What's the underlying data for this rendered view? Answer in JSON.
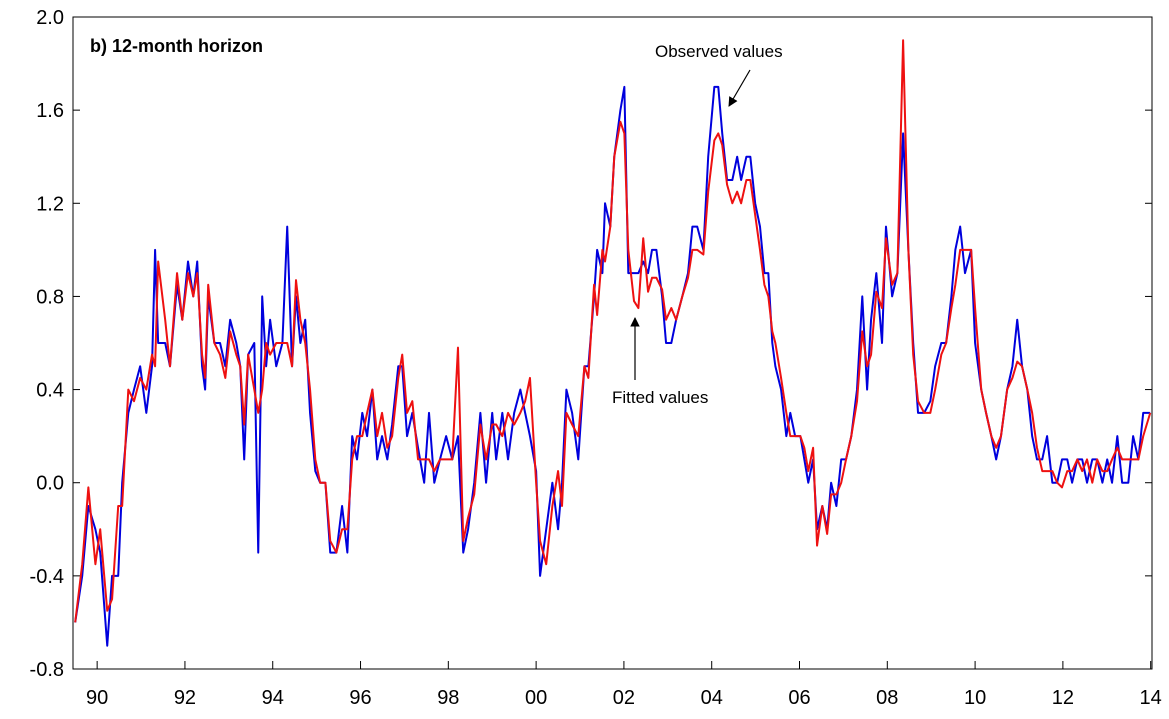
{
  "chart_data": {
    "type": "line",
    "title": "b) 12-month horizon",
    "annotations": [
      "Observed values",
      "Fitted values"
    ],
    "xlim": [
      1989.95,
      2014.53
    ],
    "ylim": [
      -0.8,
      2.0
    ],
    "xticks": [
      {
        "value": 1990.5,
        "label": "90"
      },
      {
        "value": 1992.5,
        "label": "92"
      },
      {
        "value": 1994.5,
        "label": "94"
      },
      {
        "value": 1996.5,
        "label": "96"
      },
      {
        "value": 1998.5,
        "label": "98"
      },
      {
        "value": 2000.5,
        "label": "00"
      },
      {
        "value": 2002.5,
        "label": "02"
      },
      {
        "value": 2004.5,
        "label": "04"
      },
      {
        "value": 2006.5,
        "label": "06"
      },
      {
        "value": 2008.5,
        "label": "08"
      },
      {
        "value": 2010.5,
        "label": "10"
      },
      {
        "value": 2012.5,
        "label": "12"
      },
      {
        "value": 2014.5,
        "label": "14"
      }
    ],
    "yticks": [
      -0.8,
      -0.4,
      {
        "value": 0,
        "label": "0.0"
      },
      0.4,
      0.8,
      1.2,
      1.6,
      {
        "value": 2,
        "label": "2.0"
      }
    ],
    "x": [
      1990.0,
      1990.16,
      1990.3,
      1990.46,
      1990.57,
      1990.73,
      1990.84,
      1990.98,
      1991.07,
      1991.21,
      1991.34,
      1991.48,
      1991.62,
      1991.75,
      1991.82,
      1991.89,
      1992.05,
      1992.16,
      1992.32,
      1992.44,
      1992.57,
      1992.69,
      1992.78,
      1992.89,
      1992.96,
      1993.03,
      1993.17,
      1993.3,
      1993.42,
      1993.53,
      1993.67,
      1993.76,
      1993.85,
      1993.94,
      1994.08,
      1994.17,
      1994.26,
      1994.35,
      1994.44,
      1994.58,
      1994.72,
      1994.83,
      1994.94,
      1995.03,
      1995.13,
      1995.24,
      1995.35,
      1995.47,
      1995.58,
      1995.7,
      1995.81,
      1995.95,
      1996.08,
      1996.2,
      1996.31,
      1996.42,
      1996.54,
      1996.65,
      1996.77,
      1996.88,
      1996.99,
      1997.11,
      1997.22,
      1997.36,
      1997.45,
      1997.56,
      1997.68,
      1997.81,
      1997.95,
      1998.06,
      1998.18,
      1998.31,
      1998.45,
      1998.59,
      1998.72,
      1998.84,
      1998.95,
      1999.09,
      1999.23,
      1999.36,
      1999.5,
      1999.59,
      1999.73,
      1999.86,
      2000.0,
      2000.14,
      2000.25,
      2000.36,
      2000.5,
      2000.59,
      2000.73,
      2000.87,
      2001.0,
      2001.09,
      2001.19,
      2001.32,
      2001.46,
      2001.6,
      2001.69,
      2001.82,
      2001.89,
      2002.01,
      2002.07,
      2002.19,
      2002.28,
      2002.42,
      2002.51,
      2002.6,
      2002.73,
      2002.83,
      2002.94,
      2003.05,
      2003.14,
      2003.24,
      2003.37,
      2003.46,
      2003.58,
      2003.69,
      2003.83,
      2003.96,
      2004.06,
      2004.17,
      2004.31,
      2004.42,
      2004.56,
      2004.65,
      2004.74,
      2004.85,
      2004.97,
      2005.08,
      2005.17,
      2005.29,
      2005.38,
      2005.49,
      2005.6,
      2005.7,
      2005.79,
      2005.88,
      2005.95,
      2006.08,
      2006.2,
      2006.29,
      2006.4,
      2006.52,
      2006.61,
      2006.7,
      2006.81,
      2006.9,
      2007.02,
      2007.13,
      2007.22,
      2007.34,
      2007.45,
      2007.56,
      2007.68,
      2007.81,
      2007.93,
      2008.04,
      2008.13,
      2008.25,
      2008.38,
      2008.47,
      2008.61,
      2008.73,
      2008.86,
      2008.98,
      2009.09,
      2009.2,
      2009.34,
      2009.48,
      2009.59,
      2009.73,
      2009.84,
      2009.96,
      2010.05,
      2010.16,
      2010.27,
      2010.41,
      2010.5,
      2010.64,
      2010.75,
      2010.87,
      2010.98,
      2011.09,
      2011.23,
      2011.35,
      2011.46,
      2011.57,
      2011.69,
      2011.8,
      2011.91,
      2012.03,
      2012.14,
      2012.26,
      2012.37,
      2012.48,
      2012.6,
      2012.71,
      2012.83,
      2012.94,
      2013.05,
      2013.17,
      2013.28,
      2013.4,
      2013.51,
      2013.62,
      2013.74,
      2013.85,
      2013.99,
      2014.1,
      2014.22,
      2014.33,
      2014.49
    ],
    "series": [
      {
        "name": "Observed values",
        "color": "#0000dd",
        "values": [
          -0.6,
          -0.4,
          -0.1,
          -0.2,
          -0.3,
          -0.7,
          -0.4,
          -0.4,
          0.0,
          0.3,
          0.4,
          0.5,
          0.3,
          0.5,
          1.0,
          0.6,
          0.6,
          0.5,
          0.85,
          0.7,
          0.95,
          0.8,
          0.95,
          0.5,
          0.4,
          0.8,
          0.6,
          0.6,
          0.5,
          0.7,
          0.6,
          0.5,
          0.1,
          0.55,
          0.6,
          -0.3,
          0.8,
          0.5,
          0.7,
          0.5,
          0.6,
          1.1,
          0.5,
          0.8,
          0.6,
          0.7,
          0.3,
          0.05,
          0.0,
          0.0,
          -0.3,
          -0.3,
          -0.1,
          -0.3,
          0.2,
          0.1,
          0.3,
          0.2,
          0.4,
          0.1,
          0.2,
          0.1,
          0.25,
          0.5,
          0.5,
          0.2,
          0.3,
          0.15,
          0.0,
          0.3,
          0.0,
          0.1,
          0.2,
          0.1,
          0.2,
          -0.3,
          -0.2,
          0.0,
          0.3,
          0.0,
          0.3,
          0.1,
          0.3,
          0.1,
          0.3,
          0.4,
          0.3,
          0.2,
          0.05,
          -0.4,
          -0.2,
          0.0,
          -0.2,
          0.0,
          0.4,
          0.3,
          0.1,
          0.5,
          0.5,
          0.8,
          1.0,
          0.9,
          1.2,
          1.1,
          1.4,
          1.6,
          1.7,
          0.9,
          0.9,
          0.9,
          0.95,
          0.9,
          1.0,
          1.0,
          0.8,
          0.6,
          0.6,
          0.7,
          0.8,
          0.9,
          1.1,
          1.1,
          1.0,
          1.4,
          1.7,
          1.7,
          1.5,
          1.3,
          1.3,
          1.4,
          1.3,
          1.4,
          1.4,
          1.2,
          1.1,
          0.9,
          0.9,
          0.6,
          0.5,
          0.4,
          0.2,
          0.3,
          0.2,
          0.2,
          0.1,
          0.0,
          0.1,
          -0.2,
          -0.1,
          -0.2,
          0.0,
          -0.1,
          0.1,
          0.1,
          0.2,
          0.4,
          0.8,
          0.4,
          0.7,
          0.9,
          0.6,
          1.1,
          0.8,
          0.9,
          1.5,
          1.0,
          0.6,
          0.3,
          0.3,
          0.35,
          0.5,
          0.6,
          0.6,
          0.8,
          1.0,
          1.1,
          0.9,
          1.0,
          0.6,
          0.4,
          0.3,
          0.2,
          0.1,
          0.2,
          0.4,
          0.5,
          0.7,
          0.5,
          0.4,
          0.2,
          0.1,
          0.1,
          0.2,
          0.0,
          0.0,
          0.1,
          0.1,
          0.0,
          0.1,
          0.1,
          0.0,
          0.1,
          0.1,
          0.0,
          0.1,
          0.0,
          0.2,
          0.0,
          0.0,
          0.2,
          0.1,
          0.3,
          0.3
        ]
      },
      {
        "name": "Fitted values",
        "color": "#ee1111",
        "values": [
          -0.6,
          -0.35,
          -0.02,
          -0.35,
          -0.2,
          -0.55,
          -0.5,
          -0.1,
          -0.1,
          0.4,
          0.35,
          0.45,
          0.4,
          0.55,
          0.5,
          0.95,
          0.7,
          0.5,
          0.9,
          0.7,
          0.9,
          0.8,
          0.9,
          0.55,
          0.45,
          0.85,
          0.6,
          0.55,
          0.45,
          0.65,
          0.55,
          0.5,
          0.25,
          0.55,
          0.4,
          0.3,
          0.4,
          0.6,
          0.55,
          0.6,
          0.6,
          0.6,
          0.5,
          0.87,
          0.7,
          0.6,
          0.4,
          0.1,
          0.0,
          0.0,
          -0.25,
          -0.3,
          -0.2,
          -0.2,
          0.1,
          0.2,
          0.2,
          0.3,
          0.4,
          0.2,
          0.3,
          0.15,
          0.2,
          0.45,
          0.55,
          0.3,
          0.35,
          0.1,
          0.1,
          0.1,
          0.05,
          0.1,
          0.1,
          0.1,
          0.58,
          -0.25,
          -0.15,
          -0.05,
          0.25,
          0.1,
          0.25,
          0.25,
          0.2,
          0.3,
          0.25,
          0.3,
          0.35,
          0.45,
          0.0,
          -0.25,
          -0.35,
          -0.1,
          0.05,
          -0.1,
          0.3,
          0.25,
          0.2,
          0.5,
          0.45,
          0.85,
          0.72,
          1.0,
          0.95,
          1.1,
          1.4,
          1.55,
          1.5,
          1.0,
          0.78,
          0.75,
          1.05,
          0.82,
          0.88,
          0.88,
          0.83,
          0.7,
          0.75,
          0.7,
          0.8,
          0.88,
          1.0,
          1.0,
          0.98,
          1.25,
          1.47,
          1.5,
          1.45,
          1.28,
          1.2,
          1.25,
          1.2,
          1.3,
          1.3,
          1.15,
          1.0,
          0.85,
          0.8,
          0.65,
          0.6,
          0.45,
          0.3,
          0.2,
          0.2,
          0.2,
          0.15,
          0.05,
          0.15,
          -0.27,
          -0.1,
          -0.22,
          -0.05,
          -0.05,
          0.0,
          0.1,
          0.2,
          0.35,
          0.65,
          0.5,
          0.55,
          0.82,
          0.75,
          1.05,
          0.85,
          0.9,
          1.9,
          1.0,
          0.55,
          0.35,
          0.3,
          0.3,
          0.4,
          0.55,
          0.6,
          0.75,
          0.85,
          1.0,
          1.0,
          1.0,
          0.75,
          0.4,
          0.3,
          0.2,
          0.15,
          0.2,
          0.4,
          0.45,
          0.52,
          0.5,
          0.4,
          0.3,
          0.15,
          0.05,
          0.05,
          0.05,
          0.0,
          -0.02,
          0.05,
          0.05,
          0.1,
          0.05,
          0.1,
          0.0,
          0.1,
          0.05,
          0.05,
          0.1,
          0.15,
          0.1,
          0.1,
          0.1,
          0.1,
          0.2,
          0.3
        ]
      }
    ]
  }
}
